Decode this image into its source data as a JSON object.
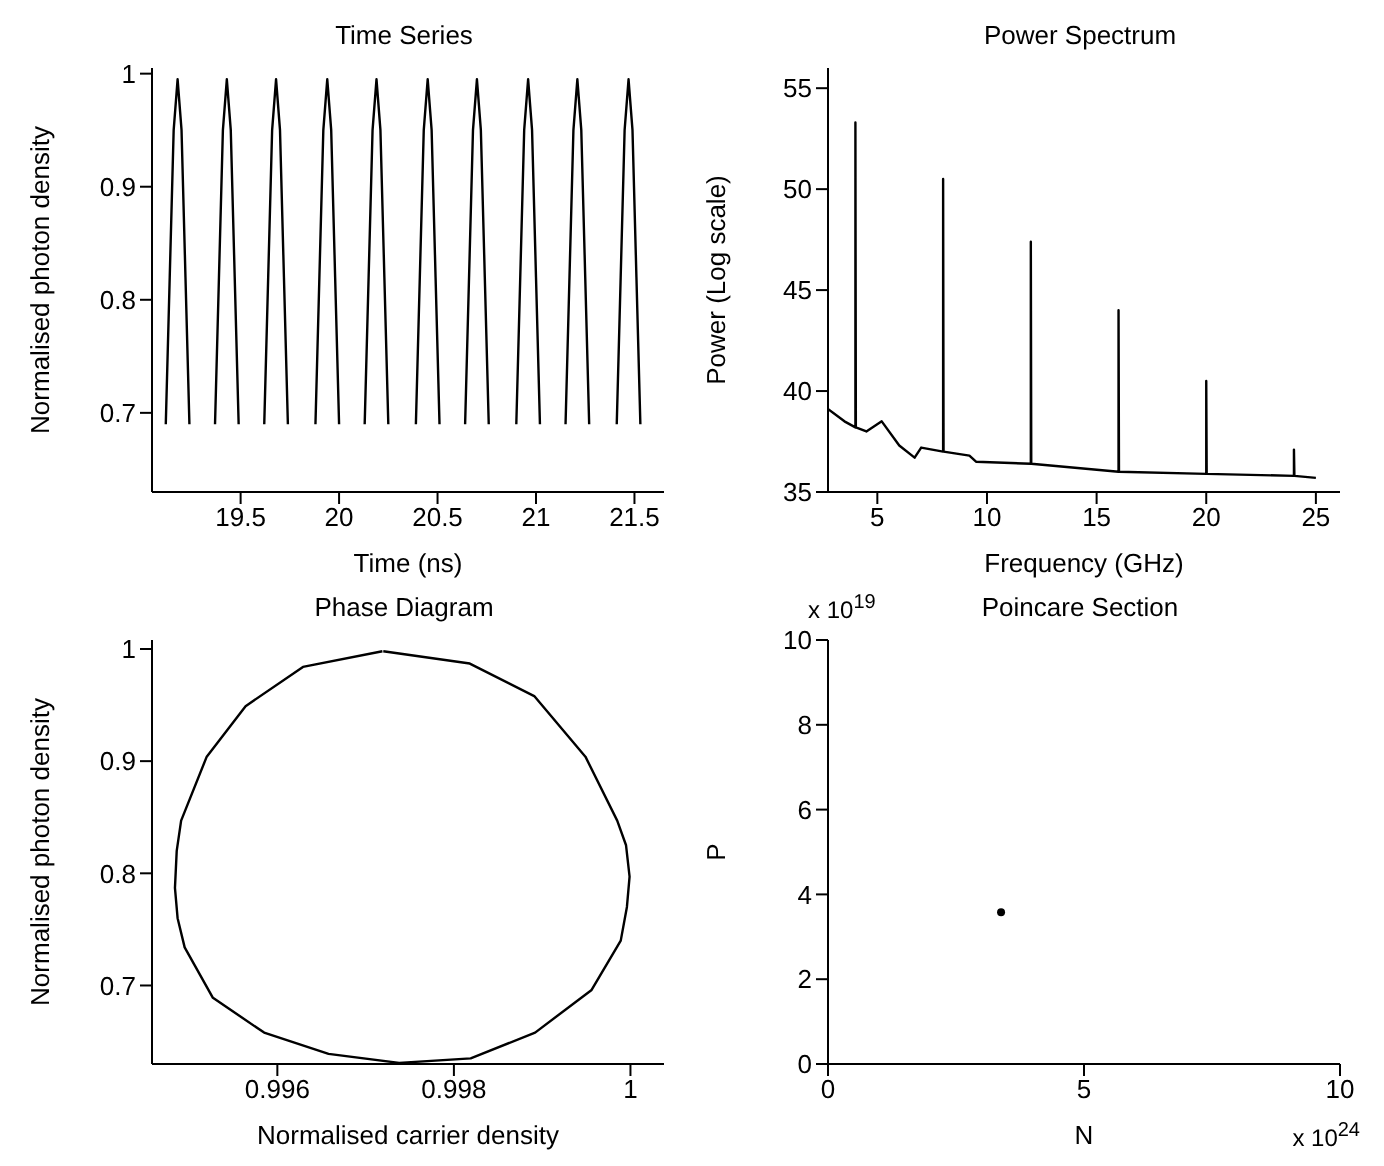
{
  "chart_data": [
    {
      "type": "line",
      "title": "Time Series",
      "xlabel": "Time (ns)",
      "ylabel": "Normalised photon density",
      "xlim": [
        19.05,
        21.65
      ],
      "ylim": [
        0.63,
        1.005
      ],
      "xticks": [
        19.5,
        20,
        20.5,
        21,
        21.5
      ],
      "yticks": [
        0.7,
        0.8,
        0.9,
        1
      ],
      "x": [
        19.12,
        19.14,
        19.16,
        19.18,
        19.2,
        19.22,
        19.24,
        19.305,
        19.37,
        19.39,
        19.41,
        19.43,
        19.45,
        19.47,
        19.49,
        19.555,
        19.62,
        19.64,
        19.66,
        19.68,
        19.7,
        19.72,
        19.74,
        19.81,
        19.88,
        19.9,
        19.92,
        19.94,
        19.96,
        19.98,
        20.0,
        20.065,
        20.13,
        20.15,
        20.17,
        20.19,
        20.21,
        20.23,
        20.25,
        20.32,
        20.39,
        20.41,
        20.43,
        20.45,
        20.47,
        20.49,
        20.51,
        20.575,
        20.64,
        20.66,
        20.68,
        20.7,
        20.72,
        20.74,
        20.76,
        20.83,
        20.9,
        20.92,
        20.94,
        20.96,
        20.98,
        21.0,
        21.02,
        21.085,
        21.15,
        21.17,
        21.19,
        21.21,
        21.23,
        21.25,
        21.27,
        21.34,
        21.41,
        21.43,
        21.45,
        21.47,
        21.49,
        21.51,
        21.53
      ],
      "series": [
        {
          "color": "#000000",
          "values": [
            0.69,
            0.82,
            0.95,
            0.995,
            0.95,
            0.82,
            0.69,
            null,
            0.69,
            0.82,
            0.95,
            0.995,
            0.95,
            0.82,
            0.69,
            null,
            0.69,
            0.82,
            0.95,
            0.995,
            0.95,
            0.82,
            0.69,
            null,
            0.69,
            0.82,
            0.95,
            0.995,
            0.95,
            0.82,
            0.69,
            null,
            0.69,
            0.82,
            0.95,
            0.995,
            0.95,
            0.82,
            0.69,
            null,
            0.69,
            0.82,
            0.95,
            0.995,
            0.95,
            0.82,
            0.69,
            null,
            0.69,
            0.82,
            0.95,
            0.995,
            0.95,
            0.82,
            0.69,
            null,
            0.69,
            0.82,
            0.95,
            0.995,
            0.95,
            0.82,
            0.69,
            null,
            0.69,
            0.82,
            0.95,
            0.995,
            0.95,
            0.82,
            0.69,
            null,
            0.69,
            0.82,
            0.95,
            0.995,
            0.95,
            0.82,
            0.69
          ]
        }
      ]
    },
    {
      "type": "line",
      "title": "Power Spectrum",
      "xlabel": "Frequency (GHz)",
      "ylabel": "Power (Log scale)",
      "xlim": [
        2.75,
        26.1
      ],
      "ylim": [
        35,
        56
      ],
      "xticks": [
        5,
        10,
        15,
        20,
        25
      ],
      "yticks": [
        35,
        40,
        45,
        50,
        55
      ],
      "x": [
        2.76,
        3.5,
        4,
        4,
        4.02,
        4.5,
        5.2,
        6,
        6.7,
        7,
        8,
        8,
        8.02,
        9.2,
        9.5,
        12,
        12,
        12.02,
        16,
        16,
        16.02,
        20,
        20,
        20.02,
        24,
        24,
        24.02,
        25
      ],
      "series": [
        {
          "color": "#000000",
          "values": [
            39.1,
            38.5,
            38.2,
            53.3,
            38.2,
            38.0,
            38.5,
            37.3,
            36.7,
            37.2,
            37.0,
            50.5,
            37.0,
            36.8,
            36.5,
            36.4,
            47.4,
            36.4,
            36.0,
            44.0,
            36.0,
            35.9,
            40.5,
            35.9,
            35.8,
            37.1,
            35.8,
            35.7
          ]
        }
      ]
    },
    {
      "type": "line",
      "title": "Phase Diagram",
      "xlabel": "Normalised carrier density",
      "ylabel": "Normalised photon density",
      "xlim": [
        0.99458,
        1.00038
      ],
      "ylim": [
        0.63,
        1.008
      ],
      "xticks": [
        0.996,
        0.998,
        1
      ],
      "yticks": [
        0.7,
        0.8,
        0.9,
        1
      ],
      "series": [
        {
          "color": "#000000",
          "x": [
            0.9972,
            0.99818,
            0.99891,
            0.99949,
            0.99985,
            0.99995,
            0.99999,
            0.99996,
            0.99989,
            0.99956,
            0.99892,
            0.99819,
            0.99738,
            0.99658,
            0.99585,
            0.99527,
            0.99495,
            0.99487,
            0.99484,
            0.99486,
            0.99491,
            0.9952,
            0.99564,
            0.99629,
            0.99719
          ],
          "values": [
            0.998,
            0.987,
            0.958,
            0.904,
            0.847,
            0.825,
            0.797,
            0.77,
            0.74,
            0.696,
            0.658,
            0.635,
            0.631,
            0.639,
            0.658,
            0.689,
            0.734,
            0.76,
            0.787,
            0.82,
            0.847,
            0.904,
            0.949,
            0.984,
            0.998
          ]
        }
      ]
    },
    {
      "type": "scatter",
      "title": "Poincare Section",
      "xlabel": "N",
      "ylabel": "P",
      "xlim": [
        0,
        10
      ],
      "ylim": [
        0,
        10
      ],
      "xticks": [
        0,
        5,
        10
      ],
      "yticks": [
        0,
        2,
        4,
        6,
        8,
        10
      ],
      "marker": "circle",
      "annotations": [
        "x 10$^{19}$",
        "x 10$^{24}$"
      ],
      "x": [
        3.38
      ],
      "series": [
        {
          "color": "#000000",
          "values": [
            3.58
          ]
        }
      ]
    }
  ]
}
